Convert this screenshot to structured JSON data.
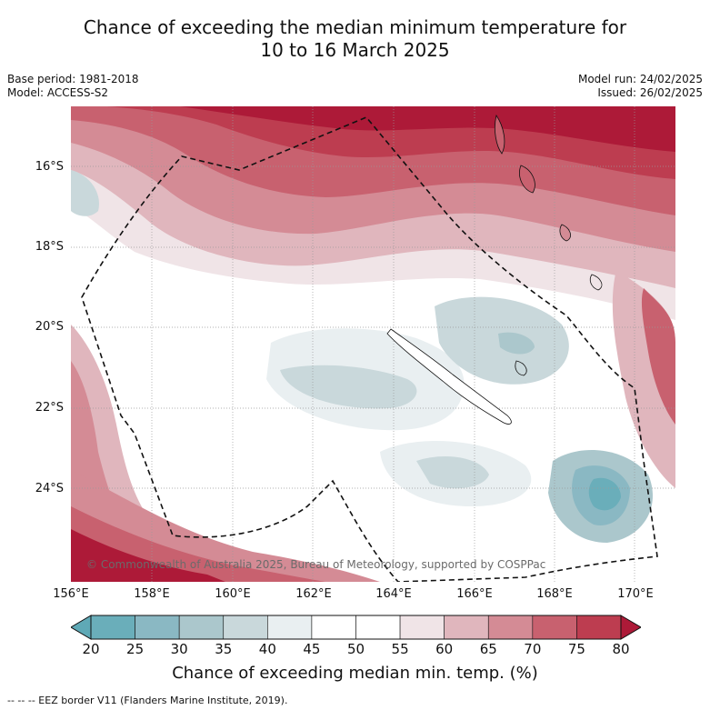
{
  "title": {
    "line1": "Chance of exceeding the median minimum temperature for",
    "line2": "10 to 16 March 2025"
  },
  "meta": {
    "base_period": "Base period: 1981-2018",
    "model": "Model: ACCESS-S2",
    "model_run": "Model run: 24/02/2025",
    "issued": "Issued: 26/02/2025"
  },
  "map": {
    "lat_labels": [
      "16°S",
      "18°S",
      "20°S",
      "22°S",
      "24°S"
    ],
    "lon_labels": [
      "156°E",
      "158°E",
      "160°E",
      "162°E",
      "164°E",
      "166°E",
      "168°E",
      "170°E"
    ],
    "lon_range": [
      156,
      171
    ],
    "lat_range": [
      -26.2,
      -14.4
    ],
    "copyright": "© Commonwealth of Australia 2025, Bureau of Meteorology, supported by COSPPac"
  },
  "colorbar": {
    "ticks": [
      "20",
      "25",
      "30",
      "35",
      "40",
      "45",
      "50",
      "55",
      "60",
      "65",
      "70",
      "75",
      "80"
    ],
    "colors": [
      "#5fa9b6",
      "#6aaeba",
      "#8ab8c3",
      "#abc7cc",
      "#c9d8db",
      "#e9eff1",
      "#ffffff",
      "#ffffff",
      "#f0e4e7",
      "#e0b6bd",
      "#d48b95",
      "#c8616f",
      "#bd3d50",
      "#ad1a38"
    ],
    "label": "Chance of exceeding median min. temp. (%)"
  },
  "legend_footer": "--  --  -- EEZ border V11 (Flanders Marine Institute, 2019)."
}
